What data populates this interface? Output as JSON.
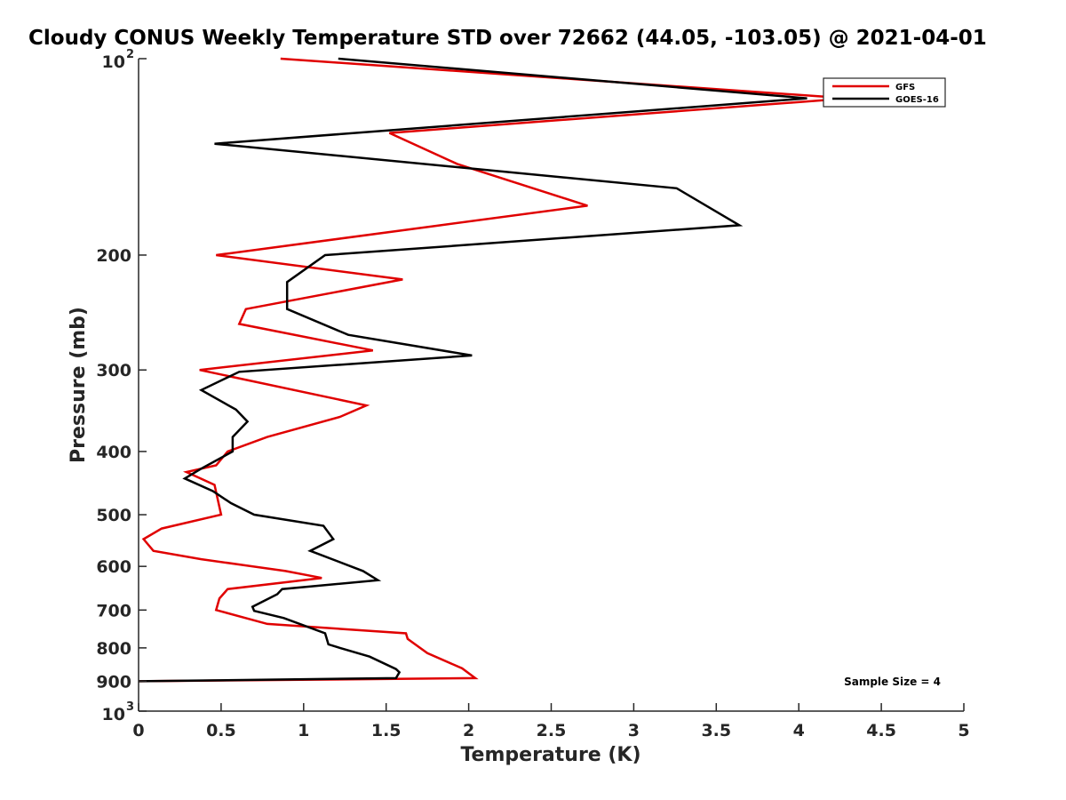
{
  "chart_data": {
    "type": "line",
    "title": "Cloudy CONUS Weekly Temperature STD over 72662 (44.05, -103.05) @ 2021-04-01",
    "xlabel": "Temperature (K)",
    "ylabel": "Pressure (mb)",
    "xlim": [
      0,
      5
    ],
    "ylim": [
      100,
      1000
    ],
    "y_scale": "log",
    "y_reversed": true,
    "grid": false,
    "legend_position": "top-right",
    "x_ticks": [
      {
        "value": 0,
        "label": "0"
      },
      {
        "value": 0.5,
        "label": "0.5"
      },
      {
        "value": 1,
        "label": "1"
      },
      {
        "value": 1.5,
        "label": "1.5"
      },
      {
        "value": 2,
        "label": "2"
      },
      {
        "value": 2.5,
        "label": "2.5"
      },
      {
        "value": 3,
        "label": "3"
      },
      {
        "value": 3.5,
        "label": "3.5"
      },
      {
        "value": 4,
        "label": "4"
      },
      {
        "value": 4.5,
        "label": "4.5"
      },
      {
        "value": 5,
        "label": "5"
      }
    ],
    "y_ticks": [
      {
        "value": 100,
        "label": "10",
        "sup": "2"
      },
      {
        "value": 200,
        "label": "200"
      },
      {
        "value": 300,
        "label": "300"
      },
      {
        "value": 400,
        "label": "400"
      },
      {
        "value": 500,
        "label": "500"
      },
      {
        "value": 600,
        "label": "600"
      },
      {
        "value": 700,
        "label": "700"
      },
      {
        "value": 800,
        "label": "800"
      },
      {
        "value": 900,
        "label": "900"
      },
      {
        "value": 1000,
        "label": "10",
        "sup": "3"
      }
    ],
    "annotation": "Sample Size = 4",
    "series": [
      {
        "name": "GFS",
        "color": "#e00000",
        "points": [
          [
            0.86,
            100
          ],
          [
            4.3,
            115
          ],
          [
            1.52,
            130
          ],
          [
            1.93,
            145
          ],
          [
            2.72,
            168
          ],
          [
            0.47,
            200
          ],
          [
            1.6,
            218
          ],
          [
            0.65,
            242
          ],
          [
            0.61,
            255
          ],
          [
            1.42,
            280
          ],
          [
            0.37,
            300
          ],
          [
            1.38,
            340
          ],
          [
            1.22,
            354
          ],
          [
            0.78,
            380
          ],
          [
            0.54,
            400
          ],
          [
            0.47,
            420
          ],
          [
            0.29,
            430
          ],
          [
            0.46,
            450
          ],
          [
            0.5,
            500
          ],
          [
            0.14,
            525
          ],
          [
            0.03,
            545
          ],
          [
            0.09,
            568
          ],
          [
            0.38,
            585
          ],
          [
            0.89,
            610
          ],
          [
            1.11,
            625
          ],
          [
            0.54,
            650
          ],
          [
            0.49,
            672
          ],
          [
            0.47,
            700
          ],
          [
            0.78,
            735
          ],
          [
            1.62,
            760
          ],
          [
            1.63,
            775
          ],
          [
            1.66,
            785
          ],
          [
            1.75,
            815
          ],
          [
            1.96,
            860
          ],
          [
            2.04,
            890
          ],
          [
            0.0,
            900
          ]
        ]
      },
      {
        "name": "GOES-16",
        "color": "#000000",
        "points": [
          [
            1.21,
            100
          ],
          [
            4.05,
            115
          ],
          [
            0.46,
            135
          ],
          [
            3.26,
            158
          ],
          [
            3.64,
            180
          ],
          [
            1.13,
            200
          ],
          [
            0.9,
            220
          ],
          [
            0.9,
            242
          ],
          [
            1.27,
            265
          ],
          [
            2.02,
            285
          ],
          [
            0.61,
            302
          ],
          [
            0.38,
            322
          ],
          [
            0.59,
            345
          ],
          [
            0.66,
            360
          ],
          [
            0.57,
            380
          ],
          [
            0.57,
            400
          ],
          [
            0.38,
            425
          ],
          [
            0.28,
            440
          ],
          [
            0.45,
            460
          ],
          [
            0.56,
            480
          ],
          [
            0.7,
            500
          ],
          [
            1.12,
            520
          ],
          [
            1.18,
            545
          ],
          [
            1.04,
            568
          ],
          [
            1.36,
            610
          ],
          [
            1.45,
            630
          ],
          [
            0.87,
            650
          ],
          [
            0.84,
            662
          ],
          [
            0.69,
            692
          ],
          [
            0.7,
            702
          ],
          [
            0.88,
            720
          ],
          [
            1.13,
            760
          ],
          [
            1.15,
            790
          ],
          [
            1.22,
            800
          ],
          [
            1.4,
            825
          ],
          [
            1.56,
            862
          ],
          [
            1.58,
            872
          ],
          [
            1.56,
            890
          ],
          [
            0.0,
            900
          ]
        ]
      }
    ]
  }
}
